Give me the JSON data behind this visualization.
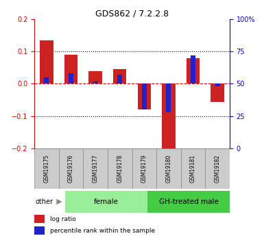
{
  "title": "GDS862 / 7.2.2.8",
  "samples": [
    "GSM19175",
    "GSM19176",
    "GSM19177",
    "GSM19178",
    "GSM19179",
    "GSM19180",
    "GSM19181",
    "GSM19182"
  ],
  "log_ratios": [
    0.133,
    0.09,
    0.038,
    0.045,
    -0.08,
    -0.205,
    0.078,
    -0.055
  ],
  "percentile_ranks": [
    55,
    58,
    52,
    57,
    30,
    28,
    72,
    48
  ],
  "groups": [
    {
      "label": "female",
      "indices": [
        0,
        1,
        2,
        3
      ],
      "color": "#99EE99"
    },
    {
      "label": "GH-treated male",
      "indices": [
        4,
        5,
        6,
        7
      ],
      "color": "#44CC44"
    }
  ],
  "ylim": [
    -0.2,
    0.2
  ],
  "right_ylim": [
    0,
    100
  ],
  "right_yticks": [
    0,
    25,
    50,
    75,
    100
  ],
  "right_yticklabels": [
    "0",
    "25",
    "50",
    "75",
    "100%"
  ],
  "left_yticks": [
    -0.2,
    -0.1,
    0.0,
    0.1,
    0.2
  ],
  "bar_color_red": "#CC2222",
  "bar_color_blue": "#2222CC",
  "bar_width": 0.55,
  "blue_bar_width": 0.2,
  "hline_color": "#CC0000",
  "dotted_line_color": "#000000",
  "plot_bg_color": "#FFFFFF",
  "tick_label_color_left": "#CC0000",
  "tick_label_color_right": "#0000CC",
  "sample_box_color": "#CCCCCC",
  "sample_box_edge": "#888888"
}
